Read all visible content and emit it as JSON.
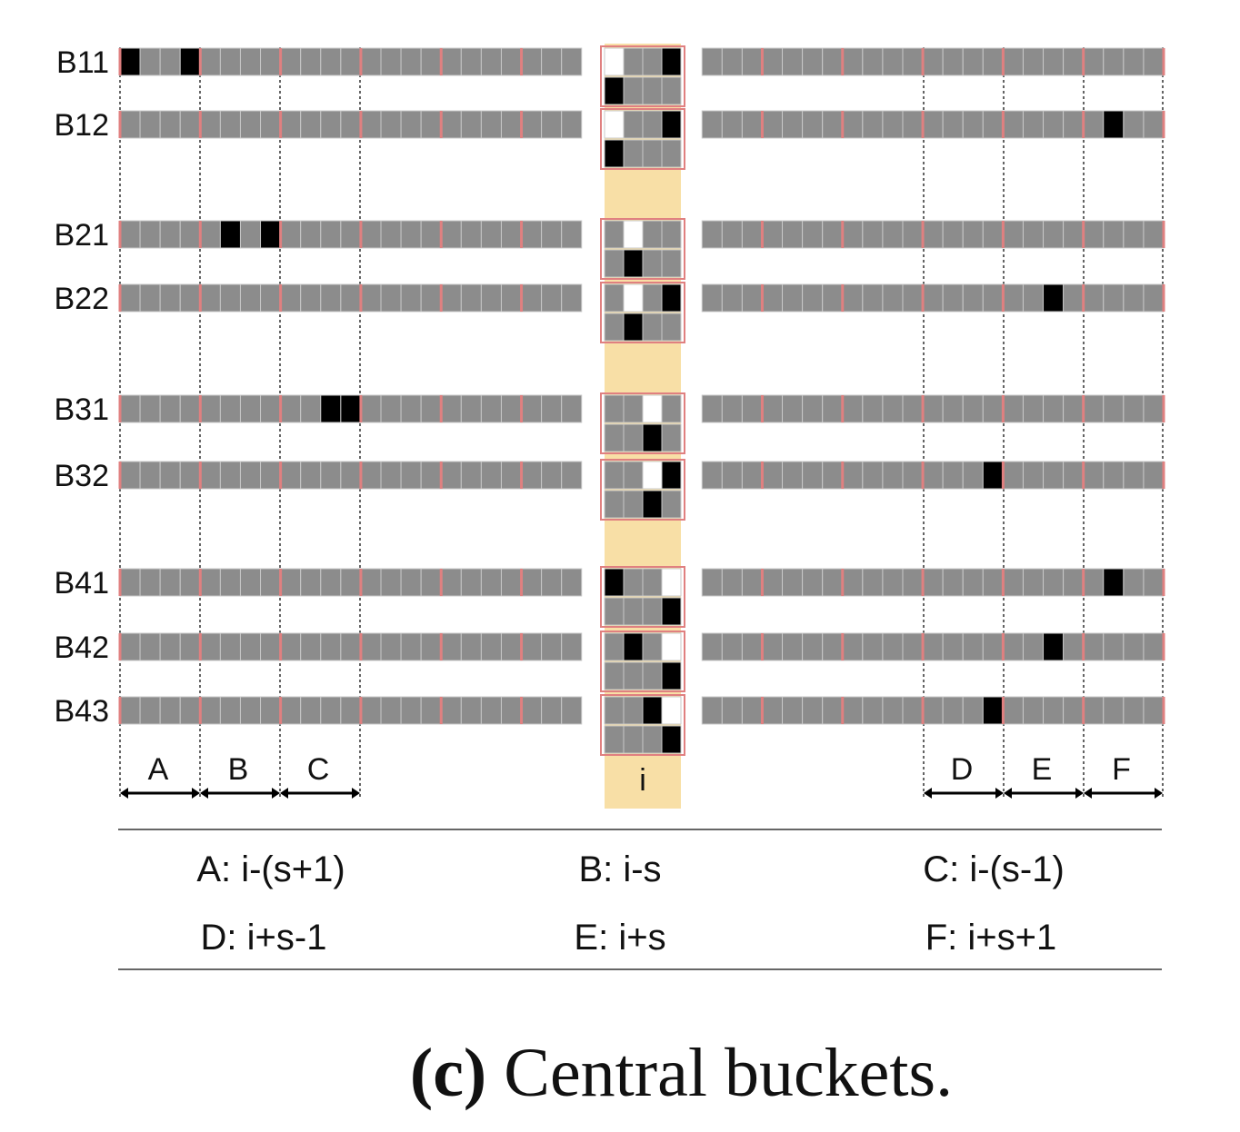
{
  "rows": [
    {
      "label": "B11",
      "black": [
        0,
        3
      ],
      "center": {
        "top": {
          "white": [
            0
          ],
          "black": [
            3
          ]
        },
        "bottom": {
          "white": [],
          "black": [
            0
          ]
        }
      }
    },
    {
      "label": "B12",
      "black": [
        49
      ],
      "center": {
        "top": {
          "white": [
            0
          ],
          "black": [
            3
          ]
        },
        "bottom": {
          "white": [],
          "black": [
            0
          ]
        }
      }
    },
    {
      "label": "B21",
      "black": [
        5,
        7
      ],
      "center": {
        "top": {
          "white": [
            1
          ],
          "black": []
        },
        "bottom": {
          "white": [],
          "black": [
            1
          ]
        }
      }
    },
    {
      "label": "B22",
      "black": [
        46
      ],
      "center": {
        "top": {
          "white": [
            1
          ],
          "black": [
            3
          ]
        },
        "bottom": {
          "white": [],
          "black": [
            1
          ]
        }
      }
    },
    {
      "label": "B31",
      "black": [
        10,
        11
      ],
      "center": {
        "top": {
          "white": [
            2
          ],
          "black": []
        },
        "bottom": {
          "white": [],
          "black": [
            2
          ]
        }
      }
    },
    {
      "label": "B32",
      "black": [
        43
      ],
      "center": {
        "top": {
          "white": [
            2
          ],
          "black": [
            3
          ]
        },
        "bottom": {
          "white": [],
          "black": [
            2
          ]
        }
      }
    },
    {
      "label": "B41",
      "black": [
        49
      ],
      "center": {
        "top": {
          "white": [
            3
          ],
          "black": [
            0
          ]
        },
        "bottom": {
          "white": [],
          "black": [
            3
          ]
        }
      }
    },
    {
      "label": "B42",
      "black": [
        46
      ],
      "center": {
        "top": {
          "white": [
            3
          ],
          "black": [
            1
          ]
        },
        "bottom": {
          "white": [],
          "black": [
            3
          ]
        }
      }
    },
    {
      "label": "B43",
      "black": [
        43
      ],
      "center": {
        "top": {
          "white": [
            3
          ],
          "black": [
            2
          ]
        },
        "bottom": {
          "white": [],
          "black": [
            3
          ]
        }
      }
    }
  ],
  "segments": [
    "A",
    "B",
    "C",
    "D",
    "E",
    "F"
  ],
  "center_label": "i",
  "legend": [
    [
      "A: i-(s+1)",
      "B: i-s",
      "C: i-(s-1)"
    ],
    [
      "D: i+s-1",
      "E: i+s",
      "F: i+s+1"
    ]
  ],
  "caption": {
    "bold": "(c)",
    "text": " Central buckets."
  },
  "colors": {
    "cell": "#8c8c8c",
    "cell_border": "#c8c8c8",
    "divider": "#e08080",
    "black": "#000000",
    "white": "#ffffff",
    "highlight": "#f8dfa6"
  }
}
